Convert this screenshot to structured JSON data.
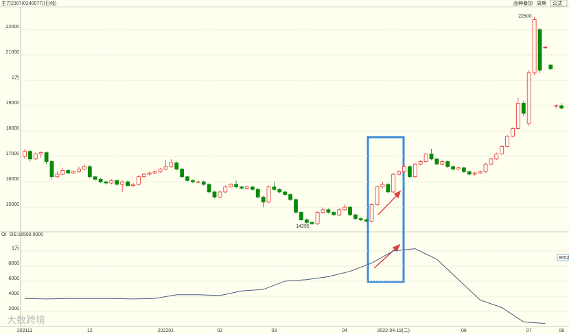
{
  "header": {
    "title": "主力2307(0240077)(日线)",
    "buttons": [
      "品种叠加",
      "周期",
      "公式"
    ]
  },
  "watermark": "大数跨境",
  "chart_data": {
    "type": "candlestick",
    "ylim": [
      14030,
      22840
    ],
    "yticks": [
      15000,
      16000,
      17000,
      18000,
      19000,
      {
        "value": 20000,
        "label": "2万"
      },
      21000,
      22000
    ],
    "grid": true,
    "up_color": "#e03030",
    "down_color": "#0a8a0a",
    "annotations": {
      "low": 14295,
      "high": 22500
    },
    "categories": [
      "202111",
      null,
      null,
      null,
      null,
      null,
      null,
      null,
      null,
      null,
      null,
      null,
      "12",
      null,
      null,
      null,
      null,
      null,
      null,
      null,
      null,
      null,
      null,
      null,
      null,
      null,
      "202201",
      null,
      null,
      null,
      null,
      null,
      null,
      null,
      null,
      null,
      "02",
      null,
      null,
      null,
      null,
      null,
      null,
      null,
      null,
      null,
      "03",
      null,
      null,
      null,
      null,
      null,
      null,
      null,
      null,
      null,
      null,
      null,
      null,
      "04",
      null,
      null,
      null,
      null,
      null,
      null,
      null,
      null,
      "2022-04-19(二)",
      null,
      null,
      null,
      null,
      null,
      null,
      null,
      null,
      null,
      null,
      null,
      null,
      "06",
      null,
      null,
      null,
      null,
      null,
      null,
      null,
      null,
      null,
      null,
      null,
      "07",
      null,
      null,
      null,
      null,
      null,
      "08"
    ],
    "candles": [
      [
        17000,
        17300,
        16900,
        17200
      ],
      [
        17200,
        17250,
        16800,
        16900
      ],
      [
        16900,
        17150,
        16850,
        17100
      ],
      [
        17100,
        17200,
        16950,
        17150
      ],
      [
        17150,
        17200,
        16700,
        16800
      ],
      [
        16800,
        16850,
        16100,
        16200
      ],
      [
        16200,
        16400,
        16150,
        16300
      ],
      [
        16300,
        16550,
        16250,
        16450
      ],
      [
        16450,
        16500,
        16300,
        16350
      ],
      [
        16350,
        16450,
        16300,
        16400
      ],
      [
        16400,
        16600,
        16350,
        16500
      ],
      [
        16500,
        16700,
        16450,
        16600
      ],
      [
        16600,
        16650,
        16150,
        16200
      ],
      [
        16200,
        16250,
        16050,
        16100
      ],
      [
        16100,
        16150,
        15950,
        16000
      ],
      [
        16000,
        16050,
        15900,
        15950
      ],
      [
        15950,
        16100,
        15900,
        16050
      ],
      [
        16050,
        16100,
        15850,
        15900
      ],
      [
        15900,
        16050,
        15600,
        16000
      ],
      [
        16000,
        16050,
        15800,
        15850
      ],
      [
        15850,
        15950,
        15800,
        15900
      ],
      [
        15900,
        16250,
        15850,
        16200
      ],
      [
        16200,
        16350,
        16150,
        16300
      ],
      [
        16300,
        16400,
        16250,
        16350
      ],
      [
        16350,
        16450,
        16300,
        16400
      ],
      [
        16400,
        16550,
        16350,
        16500
      ],
      [
        16500,
        16850,
        16450,
        16600
      ],
      [
        16600,
        16900,
        16550,
        16750
      ],
      [
        16750,
        16800,
        16450,
        16500
      ],
      [
        16500,
        16550,
        16150,
        16200
      ],
      [
        16200,
        16250,
        16000,
        16050
      ],
      [
        16050,
        16100,
        15950,
        16000
      ],
      [
        16000,
        16050,
        15950,
        16000
      ],
      [
        16000,
        16050,
        15850,
        15900
      ],
      [
        15900,
        15950,
        15550,
        15600
      ],
      [
        15600,
        15650,
        15350,
        15400
      ],
      [
        15400,
        15650,
        15350,
        15600
      ],
      [
        15600,
        15850,
        15550,
        15800
      ],
      [
        15800,
        15950,
        15750,
        15900
      ],
      [
        15900,
        16050,
        15750,
        15800
      ],
      [
        15800,
        15850,
        15700,
        15750
      ],
      [
        15750,
        15850,
        15700,
        15800
      ],
      [
        15800,
        15850,
        15650,
        15700
      ],
      [
        15700,
        15750,
        15350,
        15400
      ],
      [
        15400,
        15450,
        15000,
        15200
      ],
      [
        15200,
        15850,
        15150,
        15800
      ],
      [
        15800,
        16000,
        15650,
        15700
      ],
      [
        15700,
        15750,
        15550,
        15600
      ],
      [
        15600,
        15650,
        15450,
        15500
      ],
      [
        15500,
        15550,
        15250,
        15300
      ],
      [
        15300,
        15350,
        14750,
        14800
      ],
      [
        14800,
        14850,
        14450,
        14500
      ],
      [
        14500,
        14550,
        14350,
        14400
      ],
      [
        14400,
        14450,
        14295,
        14350
      ],
      [
        14350,
        14850,
        14300,
        14800
      ],
      [
        14800,
        15000,
        14750,
        14900
      ],
      [
        14900,
        14950,
        14750,
        14800
      ],
      [
        14800,
        14850,
        14650,
        14700
      ],
      [
        14700,
        14950,
        14650,
        14900
      ],
      [
        14900,
        15100,
        14850,
        15000
      ],
      [
        15000,
        15050,
        14650,
        14700
      ],
      [
        14700,
        14750,
        14500,
        14550
      ],
      [
        14550,
        14600,
        14450,
        14500
      ],
      [
        14500,
        14550,
        14400,
        14450
      ],
      [
        14450,
        15150,
        14400,
        15100
      ],
      [
        15100,
        15850,
        15050,
        15800
      ],
      [
        15800,
        16000,
        15750,
        15900
      ],
      [
        15900,
        15950,
        15550,
        15600
      ],
      [
        15600,
        16350,
        15550,
        16300
      ],
      [
        16300,
        16450,
        16250,
        16400
      ],
      [
        16400,
        16700,
        16350,
        16600
      ],
      [
        16600,
        16650,
        16150,
        16200
      ],
      [
        16200,
        16750,
        16150,
        16700
      ],
      [
        16700,
        16850,
        16650,
        16800
      ],
      [
        16800,
        17150,
        16750,
        17100
      ],
      [
        17100,
        17300,
        16850,
        16900
      ],
      [
        16900,
        16950,
        16650,
        16700
      ],
      [
        16700,
        16850,
        16650,
        16800
      ],
      [
        16800,
        16850,
        16550,
        16600
      ],
      [
        16600,
        16650,
        16450,
        16500
      ],
      [
        16500,
        16600,
        16450,
        16550
      ],
      [
        16550,
        16600,
        16350,
        16400
      ],
      [
        16400,
        16450,
        16250,
        16300
      ],
      [
        16300,
        16400,
        16250,
        16350
      ],
      [
        16350,
        16450,
        16300,
        16400
      ],
      [
        16400,
        16750,
        16350,
        16700
      ],
      [
        16700,
        16950,
        16650,
        16900
      ],
      [
        16900,
        17150,
        16850,
        17100
      ],
      [
        17100,
        17450,
        17050,
        17400
      ],
      [
        17400,
        17850,
        17350,
        17800
      ],
      [
        17800,
        18150,
        17750,
        18100
      ],
      [
        18100,
        19300,
        18050,
        19100
      ],
      [
        19100,
        19200,
        18600,
        18700
      ],
      [
        18300,
        20400,
        18200,
        20300
      ],
      [
        20300,
        22500,
        20200,
        22400
      ],
      [
        22000,
        22050,
        20300,
        20400
      ],
      [
        21300,
        21350,
        21250,
        21300
      ],
      [
        20600,
        20650,
        20400,
        20450
      ],
      [
        19000,
        19050,
        18900,
        19000
      ],
      [
        19000,
        19100,
        18850,
        18900
      ]
    ],
    "oi": {
      "name": "OI",
      "label": "OE:16500.0000",
      "color": "#4a5a78",
      "values": [
        3700,
        3650,
        3700,
        3700,
        3700,
        3650,
        3700,
        4200,
        4200,
        4100,
        4700,
        4900,
        6000,
        6200,
        6600,
        7300,
        8400,
        10000,
        10300,
        8900,
        6200,
        3500,
        2500,
        600,
        400
      ]
    },
    "y2lim": [
      0,
      11900
    ],
    "y2ticks": [
      2000,
      4000,
      6000,
      8000,
      {
        "value": 10000,
        "label": "1万"
      }
    ],
    "side_label": "8652"
  }
}
